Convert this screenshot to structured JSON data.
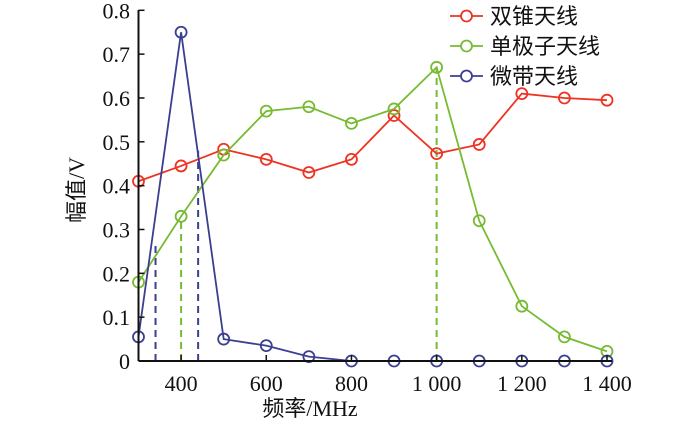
{
  "chart_data": {
    "type": "line",
    "title": "",
    "xlabel": "频率/MHz",
    "ylabel": "幅值/V",
    "xlim": [
      300,
      1400
    ],
    "ylim": [
      0,
      0.8
    ],
    "grid": false,
    "legend_position": "top-right",
    "x": [
      300,
      400,
      500,
      600,
      700,
      800,
      900,
      1000,
      1100,
      1200,
      1300,
      1400
    ],
    "x_ticks": [
      400,
      600,
      800,
      1000,
      1200,
      1400
    ],
    "x_tick_labels": [
      "400",
      "600",
      "800",
      "1 000",
      "1 200",
      "1 400"
    ],
    "y_ticks": [
      0,
      0.1,
      0.2,
      0.3,
      0.4,
      0.5,
      0.6,
      0.7,
      0.8
    ],
    "y_tick_labels": [
      "0",
      "0.1",
      "0.2",
      "0.3",
      "0.4",
      "0.5",
      "0.6",
      "0.7",
      "0.8"
    ],
    "series": [
      {
        "name": "双锥天线",
        "color": "#ee3322",
        "values": [
          0.41,
          0.445,
          0.483,
          0.46,
          0.43,
          0.46,
          0.56,
          0.473,
          0.494,
          0.61,
          0.6,
          0.595
        ]
      },
      {
        "name": "单极子天线",
        "color": "#77bb33",
        "values": [
          0.18,
          0.33,
          0.47,
          0.57,
          0.58,
          0.542,
          0.575,
          0.67,
          0.32,
          0.125,
          0.055,
          0.022
        ]
      },
      {
        "name": "微带天线",
        "color": "#3a3f90",
        "values": [
          0.055,
          0.75,
          0.05,
          0.035,
          0.01,
          0,
          0,
          0,
          0,
          0,
          0,
          0
        ]
      }
    ],
    "reference_lines": [
      {
        "series": "微带天线",
        "x": 340,
        "y": 0.27
      },
      {
        "series": "微带天线",
        "x": 440,
        "y": 0.48
      },
      {
        "series": "单极子天线",
        "x": 400,
        "y": 0.33
      },
      {
        "series": "单极子天线",
        "x": 1000,
        "y": 0.67
      }
    ]
  }
}
